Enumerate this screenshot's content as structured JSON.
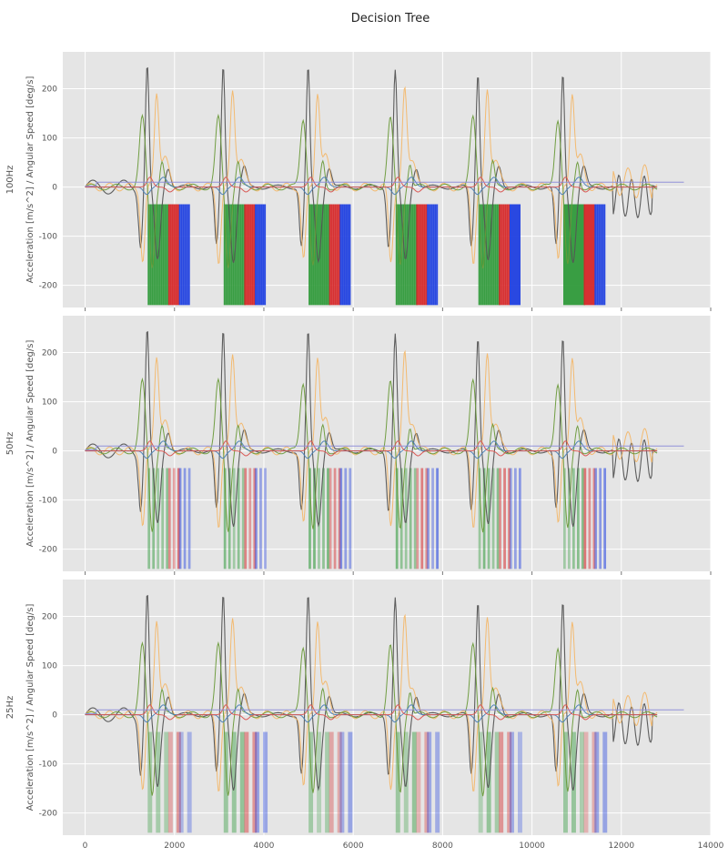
{
  "figure": {
    "title": "Decision Tree"
  },
  "chart_data": {
    "type": "line",
    "title": "Decision Tree",
    "xlim": [
      -500,
      14000
    ],
    "ylim": [
      -245,
      275
    ],
    "x_ticks": [
      0,
      2000,
      4000,
      6000,
      8000,
      10000,
      12000,
      14000
    ],
    "y_ticks": [
      -200,
      -100,
      0,
      100,
      200
    ],
    "ylabel": "Acceleration [m/s^2] / Angular Speed [deg/s]",
    "grid": true,
    "colors": {
      "series": [
        "#555555",
        "#f6b35c",
        "#6a9a3a",
        "#4a7fb5",
        "#d9534f",
        "#8c8cd9"
      ],
      "class_bars": [
        "#2f9a3a",
        "#d62728",
        "#1f3fe0"
      ],
      "background": "#e5e5e5",
      "grid": "#ffffff"
    },
    "cycles": [
      {
        "start": 1300
      },
      {
        "start": 3000
      },
      {
        "start": 4900
      },
      {
        "start": 6850
      },
      {
        "start": 8700
      },
      {
        "start": 10600
      }
    ],
    "panels": [
      {
        "row_label": "100Hz",
        "bar_opacity": 0.95,
        "stripe": 2,
        "bottom": -240
      },
      {
        "row_label": "50Hz",
        "bar_opacity": 0.6,
        "stripe": 5,
        "bottom": -240
      },
      {
        "row_label": "25Hz",
        "bar_opacity": 0.45,
        "stripe": 9,
        "bottom": -240
      }
    ]
  }
}
